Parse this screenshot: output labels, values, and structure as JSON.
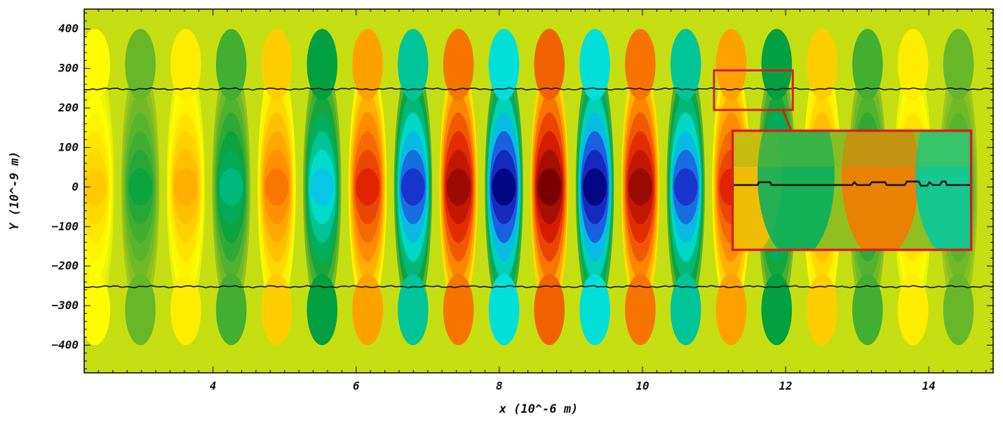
{
  "chart_data": {
    "type": "heatmap",
    "title": "",
    "xlabel": "x  (10^-6 m)",
    "ylabel": "Y  (10^-9 m)",
    "xlim": [
      2.2,
      14.9
    ],
    "ylim": [
      -470,
      450
    ],
    "xticks": [
      4,
      6,
      8,
      10,
      12,
      14
    ],
    "yticks": [
      400,
      300,
      200,
      100,
      0,
      -100,
      -200,
      -300,
      -400
    ],
    "tick_labels_x": [
      "4",
      "6",
      "8",
      "10",
      "12",
      "14"
    ],
    "tick_labels_y": [
      "400",
      "300",
      "200",
      "100",
      "0",
      "−100",
      "−200",
      "−300",
      "−400"
    ],
    "field": {
      "pattern": "standing-wave fringes with gaussian envelope",
      "wavelength_x": 1.27,
      "envelope_center_x": 8.7,
      "envelope_width_x": 3.6,
      "envelope_width_y": 330,
      "colormap": [
        "#00007a",
        "#2040e0",
        "#00e5e5",
        "#00a040",
        "#90c020",
        "#ffff00",
        "#ff9000",
        "#e02000",
        "#7a0000"
      ]
    },
    "boundary_lines": [
      {
        "name": "upper",
        "y": 248
      },
      {
        "name": "lower",
        "y": -252
      }
    ],
    "inset": {
      "source_region": {
        "x": [
          11.0,
          12.1
        ],
        "y": [
          195,
          295
        ]
      },
      "border_color": "#d81e1e"
    },
    "grid": false,
    "legend": "none"
  }
}
